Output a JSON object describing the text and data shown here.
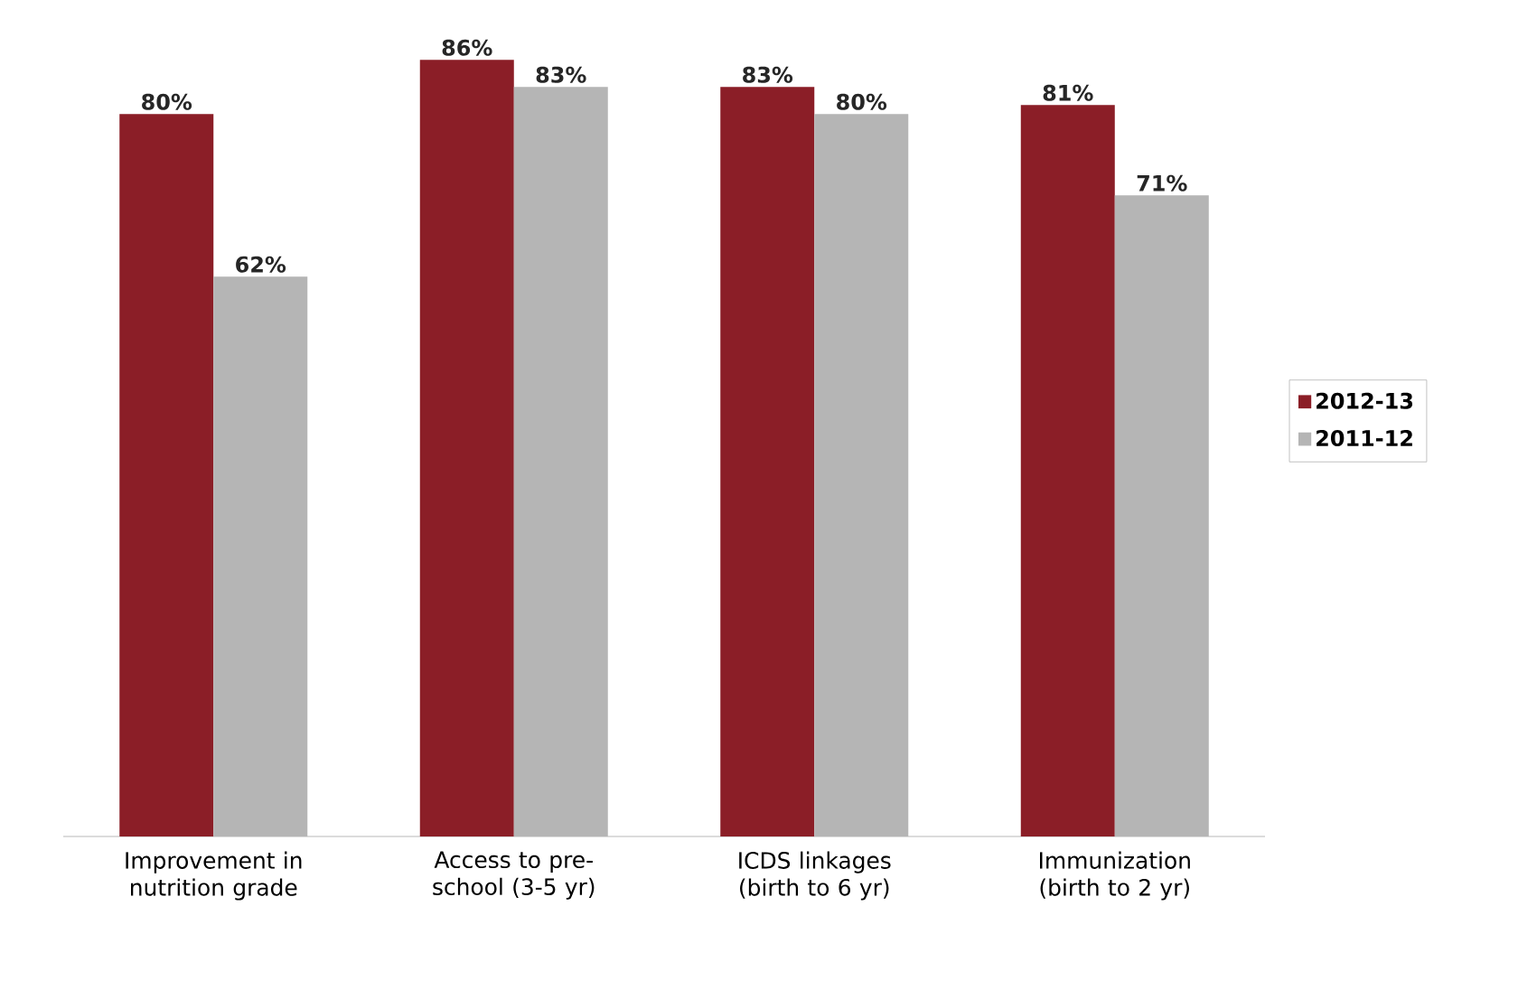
{
  "chart_data": {
    "type": "bar",
    "categories": [
      "Improvement in nutrition grade",
      "Access to pre-school (3-5 yr)",
      "ICDS linkages (birth to 6 yr)",
      "Immunization (birth to 2 yr)"
    ],
    "series": [
      {
        "name": "2012-13",
        "color": "#8b1e27",
        "values": [
          80,
          86,
          83,
          81
        ],
        "value_labels": [
          "80%",
          "86%",
          "83%",
          "81%"
        ]
      },
      {
        "name": "2011-12",
        "color": "#b5b5b5",
        "values": [
          62,
          83,
          80,
          71
        ],
        "value_labels": [
          "62%",
          "83%",
          "80%",
          "71%"
        ]
      }
    ],
    "legend": "right"
  }
}
